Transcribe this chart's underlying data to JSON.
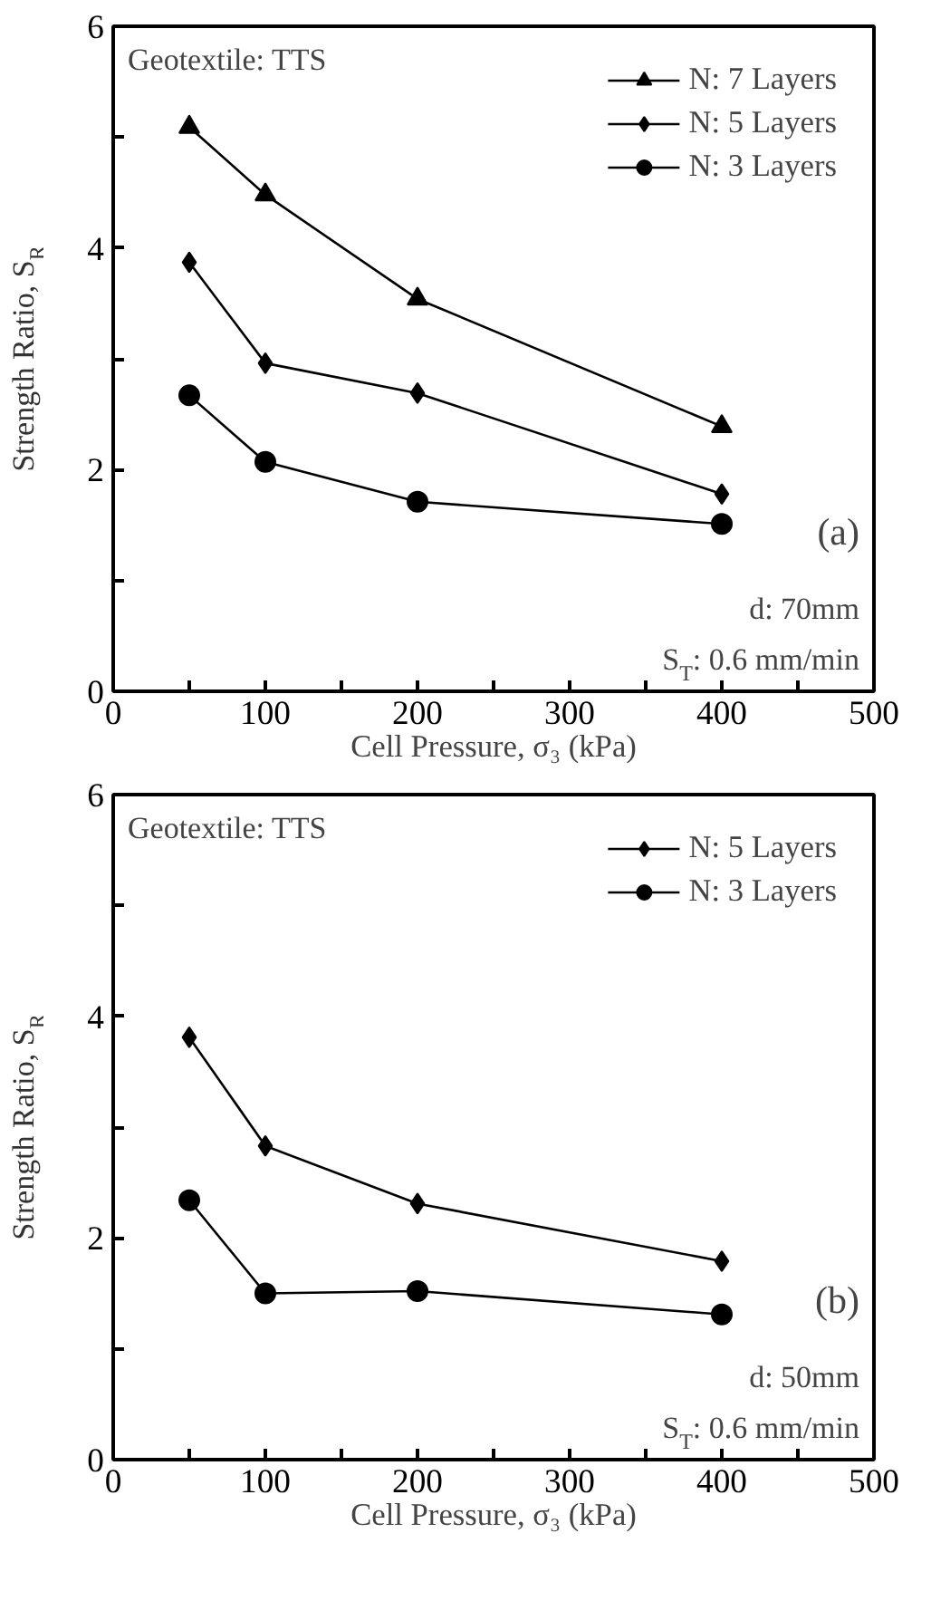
{
  "chart_data": [
    {
      "type": "line",
      "xlabel": "Cell Pressure, σ₃ (kPa)",
      "ylabel": "Strength Ratio, S$_{R}$",
      "line_style": "solid",
      "legend": "top right",
      "grid": false,
      "xlim": [
        0,
        500
      ],
      "xticks": [
        0,
        {
          "value": 50,
          "label": null
        },
        100,
        {
          "value": 150,
          "label": null
        },
        200,
        {
          "value": 250,
          "label": null
        },
        300,
        {
          "value": 350,
          "label": null
        },
        400,
        {
          "value": 450,
          "label": null
        },
        500
      ],
      "ylim": [
        0,
        6
      ],
      "yticks": [
        0,
        {
          "value": 1,
          "label": null
        },
        2,
        {
          "value": 3,
          "label": null
        },
        4,
        {
          "value": 5,
          "label": null
        },
        6
      ],
      "x": [
        50,
        100,
        200,
        400
      ],
      "series": [
        {
          "name": "N: 7 Layers",
          "color": "#000000",
          "marker": "triangle",
          "values": [
            5.09,
            4.48,
            3.54,
            2.39
          ]
        },
        {
          "name": "N: 5 Layers",
          "color": "#000000",
          "marker": "diamond",
          "values": [
            3.87,
            2.96,
            2.69,
            1.78
          ]
        },
        {
          "name": "N: 3 Layers",
          "color": "#000000",
          "marker": "circle",
          "values": [
            2.67,
            2.07,
            1.71,
            1.51
          ]
        }
      ],
      "annotations": [
        "Geotextile: TTS",
        "(a)",
        "d: 70mm",
        "S$_{T}$: 0.6 mm/min"
      ]
    },
    {
      "type": "line",
      "xlabel": "Cell Pressure, σ₃ (kPa)",
      "ylabel": "Strength Ratio, S$_{R}$",
      "line_style": "solid",
      "legend": "top right",
      "grid": false,
      "xlim": [
        0,
        500
      ],
      "xticks": [
        0,
        {
          "value": 50,
          "label": null
        },
        100,
        {
          "value": 150,
          "label": null
        },
        200,
        {
          "value": 250,
          "label": null
        },
        300,
        {
          "value": 350,
          "label": null
        },
        400,
        {
          "value": 450,
          "label": null
        },
        500
      ],
      "ylim": [
        0,
        6
      ],
      "yticks": [
        0,
        {
          "value": 1,
          "label": null
        },
        2,
        {
          "value": 3,
          "label": null
        },
        4,
        {
          "value": 5,
          "label": null
        },
        6
      ],
      "x": [
        50,
        100,
        200,
        400
      ],
      "series": [
        {
          "name": "N: 5 Layers",
          "color": "#000000",
          "marker": "diamond",
          "values": [
            3.81,
            2.83,
            2.31,
            1.79
          ]
        },
        {
          "name": "N: 3 Layers",
          "color": "#000000",
          "marker": "circle",
          "values": [
            2.34,
            1.5,
            1.52,
            1.31
          ]
        }
      ],
      "annotations": [
        "Geotextile: TTS",
        "(b)",
        "d: 50mm",
        "S$_{T}$: 0.6 mm/min"
      ]
    }
  ]
}
